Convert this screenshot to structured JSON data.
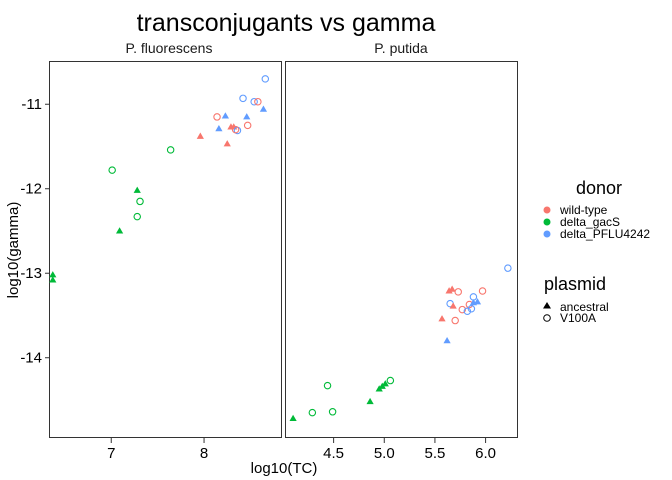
{
  "chart_data": {
    "type": "scatter",
    "title": "transconjugants vs gamma",
    "xlabel": "log10(TC)",
    "ylabel": "log10(gamma)",
    "ylim": [
      -14.95,
      -10.5
    ],
    "y_ticks": [
      -14,
      -13,
      -12,
      -11
    ],
    "grid": false,
    "legend_placement": "right",
    "colors": {
      "wild-type": "#f8766d",
      "delta_gacS": "#00ba38",
      "delta_PFLU4242": "#619cff"
    },
    "legends": {
      "donor": {
        "title": "donor",
        "items": [
          {
            "label": "wild-type",
            "color": "#f8766d"
          },
          {
            "label": "delta_gacS",
            "color": "#00ba38"
          },
          {
            "label": "delta_PFLU4242",
            "color": "#619cff"
          }
        ]
      },
      "plasmid": {
        "title": "plasmid",
        "items": [
          {
            "label": "ancestral",
            "shape": "triangle"
          },
          {
            "label": "V100A",
            "shape": "open-circle"
          }
        ]
      }
    },
    "panels": [
      {
        "title": "P. fluorescens",
        "xlim": [
          6.34,
          8.84
        ],
        "x_ticks": [
          7,
          8
        ],
        "points": [
          {
            "x": 6.37,
            "y": -13.02,
            "donor": "delta_gacS",
            "plasmid": "ancestral"
          },
          {
            "x": 6.37,
            "y": -13.08,
            "donor": "delta_gacS",
            "plasmid": "ancestral"
          },
          {
            "x": 7.01,
            "y": -11.78,
            "donor": "delta_gacS",
            "plasmid": "V100A"
          },
          {
            "x": 7.09,
            "y": -12.5,
            "donor": "delta_gacS",
            "plasmid": "ancestral"
          },
          {
            "x": 7.28,
            "y": -12.02,
            "donor": "delta_gacS",
            "plasmid": "ancestral"
          },
          {
            "x": 7.31,
            "y": -12.15,
            "donor": "delta_gacS",
            "plasmid": "V100A"
          },
          {
            "x": 7.28,
            "y": -12.33,
            "donor": "delta_gacS",
            "plasmid": "V100A"
          },
          {
            "x": 7.64,
            "y": -11.54,
            "donor": "delta_gacS",
            "plasmid": "V100A"
          },
          {
            "x": 7.96,
            "y": -11.38,
            "donor": "wild-type",
            "plasmid": "ancestral"
          },
          {
            "x": 8.14,
            "y": -11.15,
            "donor": "wild-type",
            "plasmid": "V100A"
          },
          {
            "x": 8.16,
            "y": -11.29,
            "donor": "delta_PFLU4242",
            "plasmid": "ancestral"
          },
          {
            "x": 8.25,
            "y": -11.47,
            "donor": "wild-type",
            "plasmid": "ancestral"
          },
          {
            "x": 8.23,
            "y": -11.14,
            "donor": "delta_PFLU4242",
            "plasmid": "ancestral"
          },
          {
            "x": 8.29,
            "y": -11.27,
            "donor": "wild-type",
            "plasmid": "ancestral"
          },
          {
            "x": 8.32,
            "y": -11.27,
            "donor": "wild-type",
            "plasmid": "ancestral"
          },
          {
            "x": 8.36,
            "y": -11.31,
            "donor": "delta_PFLU4242",
            "plasmid": "V100A"
          },
          {
            "x": 8.34,
            "y": -11.3,
            "donor": "wild-type",
            "plasmid": "V100A"
          },
          {
            "x": 8.47,
            "y": -11.25,
            "donor": "wild-type",
            "plasmid": "V100A"
          },
          {
            "x": 8.46,
            "y": -11.15,
            "donor": "delta_PFLU4242",
            "plasmid": "ancestral"
          },
          {
            "x": 8.42,
            "y": -10.93,
            "donor": "delta_PFLU4242",
            "plasmid": "V100A"
          },
          {
            "x": 8.54,
            "y": -10.97,
            "donor": "delta_PFLU4242",
            "plasmid": "V100A"
          },
          {
            "x": 8.58,
            "y": -10.97,
            "donor": "wild-type",
            "plasmid": "V100A"
          },
          {
            "x": 8.64,
            "y": -11.06,
            "donor": "delta_PFLU4242",
            "plasmid": "ancestral"
          },
          {
            "x": 8.66,
            "y": -10.7,
            "donor": "delta_PFLU4242",
            "plasmid": "V100A"
          }
        ]
      },
      {
        "title": "P. putida",
        "xlim": [
          4.03,
          6.32
        ],
        "x_ticks": [
          4.5,
          5.0,
          5.5,
          6.0
        ],
        "x_tick_labels": [
          "4.5",
          "5.0",
          "5.5",
          "6.0"
        ],
        "points": [
          {
            "x": 4.1,
            "y": -14.72,
            "donor": "delta_gacS",
            "plasmid": "ancestral"
          },
          {
            "x": 4.29,
            "y": -14.65,
            "donor": "delta_gacS",
            "plasmid": "V100A"
          },
          {
            "x": 4.44,
            "y": -14.33,
            "donor": "delta_gacS",
            "plasmid": "V100A"
          },
          {
            "x": 4.49,
            "y": -14.64,
            "donor": "delta_gacS",
            "plasmid": "V100A"
          },
          {
            "x": 4.86,
            "y": -14.52,
            "donor": "delta_gacS",
            "plasmid": "ancestral"
          },
          {
            "x": 4.95,
            "y": -14.37,
            "donor": "delta_gacS",
            "plasmid": "ancestral"
          },
          {
            "x": 4.98,
            "y": -14.34,
            "donor": "delta_gacS",
            "plasmid": "ancestral"
          },
          {
            "x": 5.01,
            "y": -14.31,
            "donor": "delta_gacS",
            "plasmid": "ancestral"
          },
          {
            "x": 5.06,
            "y": -14.27,
            "donor": "delta_gacS",
            "plasmid": "V100A"
          },
          {
            "x": 5.57,
            "y": -13.54,
            "donor": "wild-type",
            "plasmid": "ancestral"
          },
          {
            "x": 5.62,
            "y": -13.8,
            "donor": "delta_PFLU4242",
            "plasmid": "ancestral"
          },
          {
            "x": 5.64,
            "y": -13.21,
            "donor": "wild-type",
            "plasmid": "ancestral"
          },
          {
            "x": 5.67,
            "y": -13.19,
            "donor": "wild-type",
            "plasmid": "ancestral"
          },
          {
            "x": 5.65,
            "y": -13.36,
            "donor": "delta_PFLU4242",
            "plasmid": "V100A"
          },
          {
            "x": 5.68,
            "y": -13.39,
            "donor": "wild-type",
            "plasmid": "ancestral"
          },
          {
            "x": 5.7,
            "y": -13.56,
            "donor": "wild-type",
            "plasmid": "V100A"
          },
          {
            "x": 5.73,
            "y": -13.22,
            "donor": "wild-type",
            "plasmid": "V100A"
          },
          {
            "x": 5.77,
            "y": -13.43,
            "donor": "wild-type",
            "plasmid": "V100A"
          },
          {
            "x": 5.82,
            "y": -13.45,
            "donor": "delta_PFLU4242",
            "plasmid": "V100A"
          },
          {
            "x": 5.84,
            "y": -13.37,
            "donor": "wild-type",
            "plasmid": "V100A"
          },
          {
            "x": 5.86,
            "y": -13.42,
            "donor": "delta_PFLU4242",
            "plasmid": "V100A"
          },
          {
            "x": 5.88,
            "y": -13.28,
            "donor": "delta_PFLU4242",
            "plasmid": "V100A"
          },
          {
            "x": 5.88,
            "y": -13.35,
            "donor": "delta_PFLU4242",
            "plasmid": "ancestral"
          },
          {
            "x": 5.92,
            "y": -13.34,
            "donor": "delta_PFLU4242",
            "plasmid": "ancestral"
          },
          {
            "x": 5.97,
            "y": -13.21,
            "donor": "wild-type",
            "plasmid": "V100A"
          },
          {
            "x": 6.22,
            "y": -12.94,
            "donor": "delta_PFLU4242",
            "plasmid": "V100A"
          }
        ]
      }
    ]
  }
}
